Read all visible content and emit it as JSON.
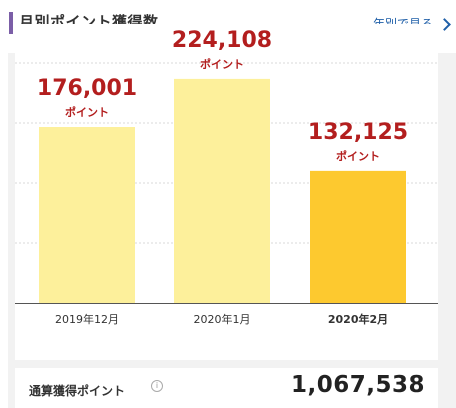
{
  "header": {
    "title": "月別ポイント獲得数",
    "yearly_link": "年別で見る"
  },
  "colors": {
    "bar_past": "#fdf09b",
    "bar_current": "#fdc92f",
    "value_text": "#b31e1e",
    "accent": "#7b5ea7"
  },
  "chart_data": {
    "type": "bar",
    "categories": [
      "2019年12月",
      "2020年1月",
      "2020年2月"
    ],
    "values": [
      176001,
      224108,
      132125
    ],
    "value_labels": [
      "176,001",
      "224,108",
      "132,125"
    ],
    "unit_label": "ポイント",
    "highlight_index": 2,
    "ylim": [
      0,
      240000
    ],
    "grid": true,
    "title": "",
    "xlabel": "",
    "ylabel": ""
  },
  "summary": {
    "label": "通算獲得ポイント",
    "info_icon": "info-icon",
    "value": "1,067,538"
  }
}
